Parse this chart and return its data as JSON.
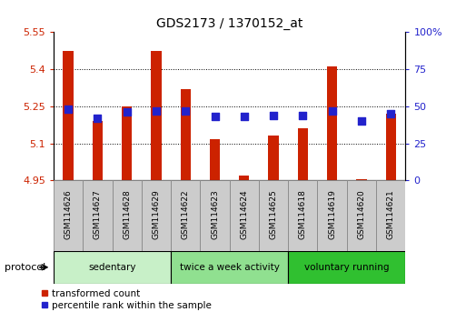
{
  "title": "GDS2173 / 1370152_at",
  "categories": [
    "GSM114626",
    "GSM114627",
    "GSM114628",
    "GSM114629",
    "GSM114622",
    "GSM114623",
    "GSM114624",
    "GSM114625",
    "GSM114618",
    "GSM114619",
    "GSM114620",
    "GSM114621"
  ],
  "transformed_count": [
    5.475,
    5.19,
    5.25,
    5.475,
    5.32,
    5.115,
    4.97,
    5.13,
    5.16,
    5.41,
    4.955,
    5.22
  ],
  "percentile_rank": [
    48,
    42,
    46,
    47,
    47,
    43,
    43,
    44,
    44,
    47,
    40,
    45
  ],
  "ylim_left": [
    4.95,
    5.55
  ],
  "ylim_right": [
    0,
    100
  ],
  "yticks_left": [
    4.95,
    5.1,
    5.25,
    5.4,
    5.55
  ],
  "yticks_right": [
    0,
    25,
    50,
    75,
    100
  ],
  "ytick_labels_left": [
    "4.95",
    "5.1",
    "5.25",
    "5.4",
    "5.55"
  ],
  "ytick_labels_right": [
    "0",
    "25",
    "50",
    "75",
    "100%"
  ],
  "groups": [
    {
      "label": "sedentary",
      "indices": [
        0,
        1,
        2,
        3
      ],
      "color": "#c8f0c8"
    },
    {
      "label": "twice a week activity",
      "indices": [
        4,
        5,
        6,
        7
      ],
      "color": "#90e090"
    },
    {
      "label": "voluntary running",
      "indices": [
        8,
        9,
        10,
        11
      ],
      "color": "#30c030"
    }
  ],
  "bar_color": "#cc2200",
  "dot_color": "#2222cc",
  "bar_width": 0.35,
  "dot_size": 30,
  "base_value": 4.95,
  "tick_color_left": "#cc2200",
  "tick_color_right": "#2222cc",
  "legend_red_label": "transformed count",
  "legend_blue_label": "percentile rank within the sample",
  "protocol_label": "protocol"
}
